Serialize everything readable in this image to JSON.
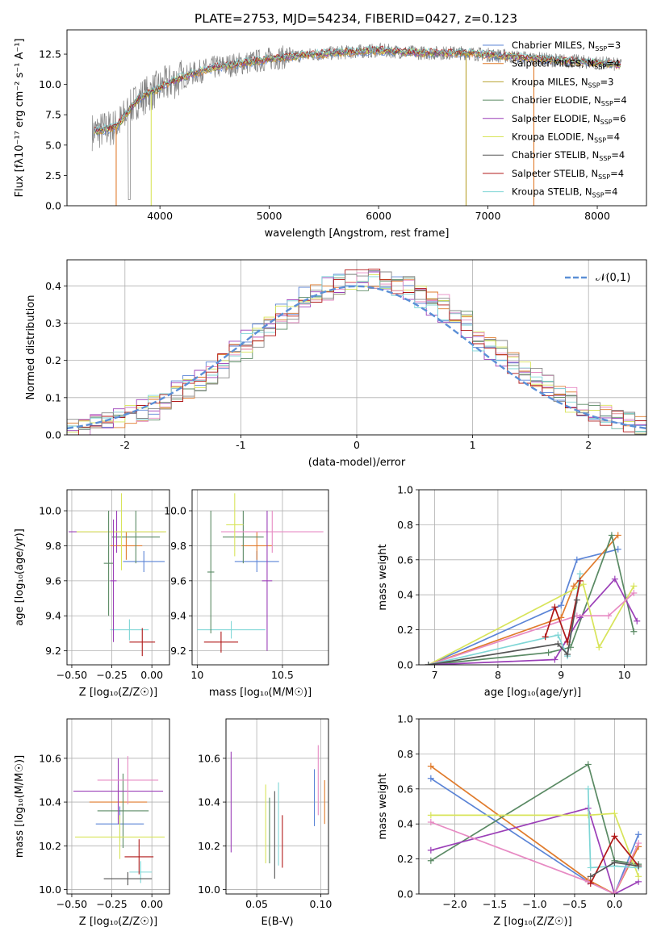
{
  "figure": {
    "title": "PLATE=2753, MJD=54234, FIBERID=0427, z=0.123"
  },
  "chart_data": [
    {
      "id": "spectrum",
      "type": "line",
      "title": "PLATE=2753, MJD=54234, FIBERID=0427, z=0.123",
      "xlabel": "wavelength [Angstrom, rest frame]",
      "ylabel": "Flux [fλ10⁻¹⁷ erg cm⁻² s⁻¹ A⁻¹]",
      "xlim": [
        3150,
        8450
      ],
      "ylim": [
        0,
        14.5
      ],
      "xticks": [
        4000,
        5000,
        6000,
        7000,
        8000
      ],
      "yticks": [
        0.0,
        2.5,
        5.0,
        7.5,
        10.0,
        12.5
      ],
      "legend_position": "top-right",
      "data_shape": [
        [
          3400,
          6.1
        ],
        [
          3600,
          6.5
        ],
        [
          3680,
          7.4
        ],
        [
          3800,
          8.8
        ],
        [
          3950,
          9.5
        ],
        [
          4100,
          10.2
        ],
        [
          4300,
          10.9
        ],
        [
          4500,
          11.4
        ],
        [
          4800,
          11.8
        ],
        [
          5000,
          12.1
        ],
        [
          5300,
          12.4
        ],
        [
          5600,
          12.6
        ],
        [
          6000,
          12.8
        ],
        [
          6400,
          12.6
        ],
        [
          6800,
          12.6
        ],
        [
          7200,
          12.3
        ],
        [
          7600,
          12.0
        ],
        [
          8000,
          11.8
        ],
        [
          8200,
          11.6
        ]
      ],
      "series": [
        {
          "name": "Chabrier MILES, N_SSP=3",
          "color": "#5b84d6"
        },
        {
          "name": "Salpeter MILES, N_SSP=4",
          "color": "#e07b2c"
        },
        {
          "name": "Kroupa MILES, N_SSP=3",
          "color": "#b8a230"
        },
        {
          "name": "Chabrier ELODIE, N_SSP=4",
          "color": "#5a8a64"
        },
        {
          "name": "Salpeter ELODIE, N_SSP=6",
          "color": "#9b3fb8"
        },
        {
          "name": "Kroupa ELODIE, N_SSP=4",
          "color": "#d8e45a"
        },
        {
          "name": "Chabrier STELIB, N_SSP=4",
          "color": "#555555"
        },
        {
          "name": "Salpeter STELIB, N_SSP=4",
          "color": "#b01818"
        },
        {
          "name": "Kroupa STELIB, N_SSP=4",
          "color": "#7fd6d6"
        }
      ]
    },
    {
      "id": "residuals",
      "type": "histogram",
      "xlabel": "(data-model)/error",
      "ylabel": "Normed distribution",
      "xlim": [
        -2.5,
        2.5
      ],
      "ylim": [
        0,
        0.47
      ],
      "xticks": [
        -2,
        -1,
        0,
        1,
        2
      ],
      "yticks": [
        0.0,
        0.1,
        0.2,
        0.3,
        0.4
      ],
      "grid": true,
      "legend_position": "top-right",
      "reference_curve": {
        "name": "𝒩(0,1)",
        "color": "#5b8fd6",
        "style": "dashed"
      },
      "series_colors": [
        "#5b84d6",
        "#e07b2c",
        "#5a8a64",
        "#9b3fb8",
        "#d8e45a",
        "#e78ac3",
        "#7fd6d6",
        "#b01818",
        "#888888"
      ]
    },
    {
      "id": "age-vs-Z",
      "type": "errorbar",
      "xlabel": "Z [log₁₀(Z/Z☉)]",
      "ylabel": "age  [log₁₀(age/yr)]",
      "xlim": [
        -0.53,
        0.11
      ],
      "ylim": [
        9.12,
        10.12
      ],
      "xticks": [
        -0.5,
        -0.25,
        0.0
      ],
      "xticklabels": [
        "−0.50",
        "−0.25",
        "0.00"
      ],
      "yticks": [
        9.2,
        9.4,
        9.6,
        9.8,
        10.0
      ],
      "grid": true,
      "points": [
        {
          "x": -0.05,
          "xerr": 0.13,
          "y": 9.71,
          "yerr": 0.06,
          "color": "#5b84d6"
        },
        {
          "x": -0.16,
          "xerr": 0.1,
          "y": 9.8,
          "yerr": 0.08,
          "color": "#e07b2c"
        },
        {
          "x": -0.1,
          "xerr": 0.15,
          "y": 9.85,
          "yerr": 0.15,
          "color": "#5a8a64"
        },
        {
          "x": -0.22,
          "xerr": 0.3,
          "y": 9.88,
          "yerr": 0.12,
          "color": "#9b3fb8"
        },
        {
          "x": -0.19,
          "xerr": 0.28,
          "y": 9.88,
          "yerr": 0.22,
          "color": "#d8e45a"
        },
        {
          "x": -0.14,
          "xerr": 0.12,
          "y": 9.32,
          "yerr": 0.06,
          "color": "#7fd6d6"
        },
        {
          "x": -0.06,
          "xerr": 0.08,
          "y": 9.25,
          "yerr": 0.08,
          "color": "#b01818"
        },
        {
          "x": -0.27,
          "xerr": 0.03,
          "y": 9.7,
          "yerr": 0.3,
          "color": "#5a8a64"
        },
        {
          "x": -0.24,
          "xerr": 0.02,
          "y": 9.6,
          "yerr": 0.35,
          "color": "#9b3fb8"
        }
      ]
    },
    {
      "id": "age-vs-mass",
      "type": "errorbar",
      "xlabel": "mass [log₁₀(M/M☉)]",
      "xlim": [
        9.97,
        10.77
      ],
      "ylim": [
        9.12,
        10.12
      ],
      "xticks": [
        10.0,
        10.5
      ],
      "yticks": [
        9.2,
        9.4,
        9.6,
        9.8,
        10.0
      ],
      "grid": true,
      "points": [
        {
          "x": 10.35,
          "xerr": 0.13,
          "y": 9.71,
          "yerr": 0.06,
          "color": "#5b84d6"
        },
        {
          "x": 10.35,
          "xerr": 0.09,
          "y": 9.8,
          "yerr": 0.08,
          "color": "#e07b2c"
        },
        {
          "x": 10.27,
          "xerr": 0.12,
          "y": 9.85,
          "yerr": 0.15,
          "color": "#5a8a64"
        },
        {
          "x": 10.44,
          "xerr": 0.3,
          "y": 9.88,
          "yerr": 0.12,
          "color": "#e78ac3"
        },
        {
          "x": 10.22,
          "xerr": 0.05,
          "y": 9.92,
          "yerr": 0.18,
          "color": "#d8e45a"
        },
        {
          "x": 10.2,
          "xerr": 0.2,
          "y": 9.32,
          "yerr": 0.05,
          "color": "#7fd6d6"
        },
        {
          "x": 10.14,
          "xerr": 0.1,
          "y": 9.25,
          "yerr": 0.06,
          "color": "#b01818"
        },
        {
          "x": 10.41,
          "xerr": 0.03,
          "y": 9.6,
          "yerr": 0.4,
          "color": "#9b3fb8"
        },
        {
          "x": 10.08,
          "xerr": 0.02,
          "y": 9.65,
          "yerr": 0.35,
          "color": "#5a8a64"
        }
      ]
    },
    {
      "id": "mass-weight-vs-age",
      "type": "line",
      "xlabel": "age  [log₁₀(age/yr)]",
      "ylabel": "mass weight",
      "xlim": [
        6.75,
        10.35
      ],
      "ylim": [
        0,
        1.0
      ],
      "xticks": [
        7,
        8,
        9,
        10
      ],
      "yticks": [
        0.0,
        0.2,
        0.4,
        0.6,
        0.8,
        1.0
      ],
      "grid": true,
      "series": [
        {
          "color": "#5b84d6",
          "points": [
            [
              6.9,
              0.0
            ],
            [
              9.0,
              0.34
            ],
            [
              9.25,
              0.6
            ],
            [
              9.9,
              0.66
            ]
          ]
        },
        {
          "color": "#e07b2c",
          "points": [
            [
              6.9,
              0.0
            ],
            [
              9.0,
              0.27
            ],
            [
              9.2,
              0.45
            ],
            [
              9.9,
              0.74
            ]
          ]
        },
        {
          "color": "#5a8a64",
          "points": [
            [
              6.9,
              0.0
            ],
            [
              8.8,
              0.07
            ],
            [
              9.15,
              0.1
            ],
            [
              9.8,
              0.74
            ],
            [
              10.15,
              0.19
            ]
          ]
        },
        {
          "color": "#9b3fb8",
          "points": [
            [
              6.9,
              0.0
            ],
            [
              8.9,
              0.03
            ],
            [
              9.3,
              0.27
            ],
            [
              9.85,
              0.49
            ],
            [
              10.2,
              0.25
            ]
          ]
        },
        {
          "color": "#d8e45a",
          "points": [
            [
              6.9,
              0.0
            ],
            [
              9.35,
              0.46
            ],
            [
              9.6,
              0.1
            ],
            [
              10.15,
              0.45
            ]
          ]
        },
        {
          "color": "#e78ac3",
          "points": [
            [
              6.9,
              0.0
            ],
            [
              9.25,
              0.28
            ],
            [
              9.75,
              0.28
            ],
            [
              10.15,
              0.41
            ]
          ]
        },
        {
          "color": "#7fd6d6",
          "points": [
            [
              6.9,
              0.0
            ],
            [
              8.95,
              0.17
            ],
            [
              9.1,
              0.05
            ],
            [
              9.3,
              0.52
            ]
          ]
        },
        {
          "color": "#b01818",
          "points": [
            [
              8.75,
              0.16
            ],
            [
              8.9,
              0.33
            ],
            [
              9.1,
              0.13
            ],
            [
              9.3,
              0.48
            ]
          ]
        },
        {
          "color": "#555555",
          "points": [
            [
              6.9,
              0.0
            ],
            [
              8.95,
              0.12
            ],
            [
              9.1,
              0.06
            ],
            [
              9.25,
              0.37
            ]
          ]
        }
      ]
    },
    {
      "id": "mass-vs-Z",
      "type": "errorbar",
      "xlabel": "Z [log₁₀(Z/Z☉)]",
      "ylabel": "mass [log₁₀(M/M☉)]",
      "xlim": [
        -0.53,
        0.11
      ],
      "ylim": [
        9.98,
        10.78
      ],
      "xticks": [
        -0.5,
        -0.25,
        0.0
      ],
      "xticklabels": [
        "−0.50",
        "−0.25",
        "0.00"
      ],
      "yticks": [
        10.0,
        10.2,
        10.4,
        10.6
      ],
      "grid": true,
      "points": [
        {
          "x": -0.2,
          "xerr": 0.15,
          "y": 10.3,
          "yerr": 0.08,
          "color": "#5b84d6"
        },
        {
          "x": -0.21,
          "xerr": 0.18,
          "y": 10.4,
          "yerr": 0.08,
          "color": "#e07b2c"
        },
        {
          "x": -0.18,
          "xerr": 0.16,
          "y": 10.36,
          "yerr": 0.17,
          "color": "#5a8a64"
        },
        {
          "x": -0.21,
          "xerr": 0.28,
          "y": 10.45,
          "yerr": 0.15,
          "color": "#9b3fb8"
        },
        {
          "x": -0.15,
          "xerr": 0.19,
          "y": 10.5,
          "yerr": 0.11,
          "color": "#e78ac3"
        },
        {
          "x": -0.2,
          "xerr": 0.28,
          "y": 10.24,
          "yerr": 0.1,
          "color": "#d8e45a"
        },
        {
          "x": -0.07,
          "xerr": 0.07,
          "y": 10.08,
          "yerr": 0.05,
          "color": "#7fd6d6"
        },
        {
          "x": -0.08,
          "xerr": 0.09,
          "y": 10.15,
          "yerr": 0.08,
          "color": "#b01818"
        },
        {
          "x": -0.15,
          "xerr": 0.15,
          "y": 10.05,
          "yerr": 0.03,
          "color": "#555555"
        }
      ]
    },
    {
      "id": "mass-vs-EBV",
      "type": "errorbar",
      "xlabel": "E(B-V)",
      "xlim": [
        0.026,
        0.106
      ],
      "ylim": [
        9.98,
        10.78
      ],
      "xticks": [
        0.05,
        0.1
      ],
      "xticklabels": [
        "0.05",
        "0.10"
      ],
      "yticks": [
        10.0,
        10.2,
        10.4,
        10.6
      ],
      "grid": true,
      "points": [
        {
          "x": 0.03,
          "y": 10.4,
          "yerr": 0.23,
          "color": "#9b3fb8"
        },
        {
          "x": 0.057,
          "y": 10.3,
          "yerr": 0.18,
          "color": "#d8e45a"
        },
        {
          "x": 0.06,
          "y": 10.27,
          "yerr": 0.15,
          "color": "#5a8a64"
        },
        {
          "x": 0.064,
          "y": 10.25,
          "yerr": 0.2,
          "color": "#555555"
        },
        {
          "x": 0.067,
          "y": 10.3,
          "yerr": 0.19,
          "color": "#7fd6d6"
        },
        {
          "x": 0.07,
          "y": 10.22,
          "yerr": 0.12,
          "color": "#b01818"
        },
        {
          "x": 0.095,
          "y": 10.42,
          "yerr": 0.13,
          "color": "#5b84d6"
        },
        {
          "x": 0.098,
          "y": 10.5,
          "yerr": 0.16,
          "color": "#e78ac3"
        },
        {
          "x": 0.103,
          "y": 10.4,
          "yerr": 0.1,
          "color": "#e07b2c"
        }
      ]
    },
    {
      "id": "mass-weight-vs-Z",
      "type": "line",
      "xlabel": "Z [log₁₀(Z/Z☉)]",
      "ylabel": "mass weight",
      "xlim": [
        -2.45,
        0.4
      ],
      "ylim": [
        0,
        1.0
      ],
      "xticks": [
        -2.0,
        -1.5,
        -1.0,
        -0.5,
        0.0
      ],
      "xticklabels": [
        "−2.0",
        "−1.5",
        "−1.0",
        "−0.5",
        "0.0"
      ],
      "yticks": [
        0.0,
        0.2,
        0.4,
        0.6,
        0.8,
        1.0
      ],
      "grid": true,
      "series": [
        {
          "color": "#5b84d6",
          "points": [
            [
              -2.3,
              0.66
            ],
            [
              -0.33,
              0.07
            ],
            [
              0.0,
              0.0
            ],
            [
              0.3,
              0.34
            ]
          ]
        },
        {
          "color": "#e07b2c",
          "points": [
            [
              -2.3,
              0.73
            ],
            [
              -0.33,
              0.08
            ],
            [
              0.0,
              0.0
            ],
            [
              0.3,
              0.27
            ]
          ]
        },
        {
          "color": "#5a8a64",
          "points": [
            [
              -2.3,
              0.19
            ],
            [
              -0.33,
              0.74
            ],
            [
              0.0,
              0.19
            ],
            [
              0.3,
              0.17
            ]
          ]
        },
        {
          "color": "#9b3fb8",
          "points": [
            [
              -2.3,
              0.25
            ],
            [
              -0.33,
              0.49
            ],
            [
              0.0,
              0.0
            ],
            [
              0.3,
              0.07
            ]
          ]
        },
        {
          "color": "#d8e45a",
          "points": [
            [
              -2.3,
              0.45
            ],
            [
              -0.33,
              0.45
            ],
            [
              0.0,
              0.46
            ],
            [
              0.3,
              0.1
            ]
          ]
        },
        {
          "color": "#e78ac3",
          "points": [
            [
              -2.3,
              0.41
            ],
            [
              -0.33,
              0.07
            ],
            [
              0.0,
              0.0
            ],
            [
              0.3,
              0.29
            ]
          ]
        },
        {
          "color": "#7fd6d6",
          "points": [
            [
              -0.33,
              0.6
            ],
            [
              -0.3,
              0.15
            ],
            [
              0.0,
              0.16
            ],
            [
              0.3,
              0.15
            ]
          ]
        },
        {
          "color": "#b01818",
          "points": [
            [
              -0.3,
              0.06
            ],
            [
              0.0,
              0.33
            ],
            [
              0.3,
              0.16
            ]
          ]
        },
        {
          "color": "#555555",
          "points": [
            [
              -0.3,
              0.1
            ],
            [
              0.0,
              0.18
            ],
            [
              0.3,
              0.16
            ]
          ]
        }
      ]
    }
  ]
}
